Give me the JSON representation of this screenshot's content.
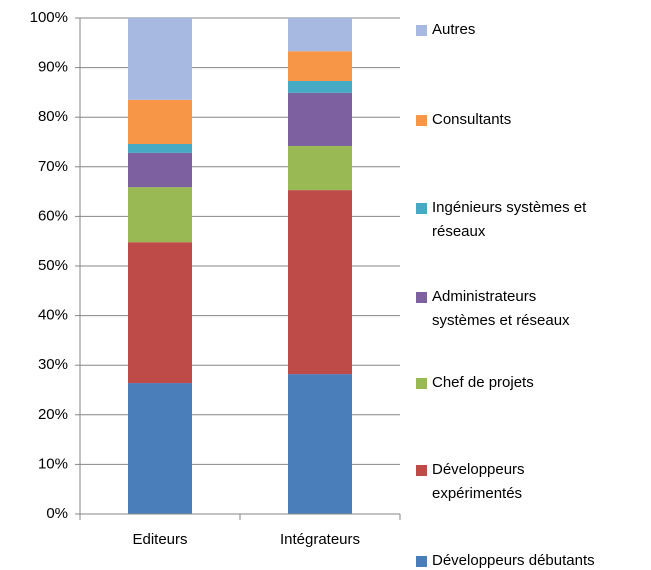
{
  "chart_data": {
    "type": "bar",
    "stacked": true,
    "categories": [
      "Editeurs",
      "Intégrateurs"
    ],
    "series": [
      {
        "name": "Développeurs débutants",
        "color": "#4a7ebb",
        "values": [
          26.4,
          28.2
        ]
      },
      {
        "name": "Développeurs expérimentés",
        "color": "#be4b48",
        "values": [
          28.4,
          37.1
        ]
      },
      {
        "name": "Chef de projets",
        "color": "#98b954",
        "values": [
          11.1,
          8.9
        ]
      },
      {
        "name": "Administrateurs systèmes et réseaux",
        "color": "#7d60a0",
        "values": [
          6.9,
          10.7
        ]
      },
      {
        "name": "Ingénieurs systèmes et réseaux",
        "color": "#46aac5",
        "values": [
          1.8,
          2.4
        ]
      },
      {
        "name": "Consultants",
        "color": "#f79646",
        "values": [
          8.9,
          6.0
        ]
      },
      {
        "name": "Autres",
        "color": "#a7b9e0",
        "values": [
          16.5,
          6.7
        ]
      }
    ],
    "ylim": [
      0,
      100
    ],
    "yticks": [
      {
        "value": 0,
        "label": "0%"
      },
      {
        "value": 10,
        "label": "10%"
      },
      {
        "value": 20,
        "label": "20%"
      },
      {
        "value": 30,
        "label": "30%"
      },
      {
        "value": 40,
        "label": "40%"
      },
      {
        "value": 50,
        "label": "50%"
      },
      {
        "value": 60,
        "label": "60%"
      },
      {
        "value": 70,
        "label": "70%"
      },
      {
        "value": 80,
        "label": "80%"
      },
      {
        "value": 90,
        "label": "90%"
      },
      {
        "value": 100,
        "label": "100%"
      }
    ],
    "grid": true,
    "legend": "right"
  }
}
